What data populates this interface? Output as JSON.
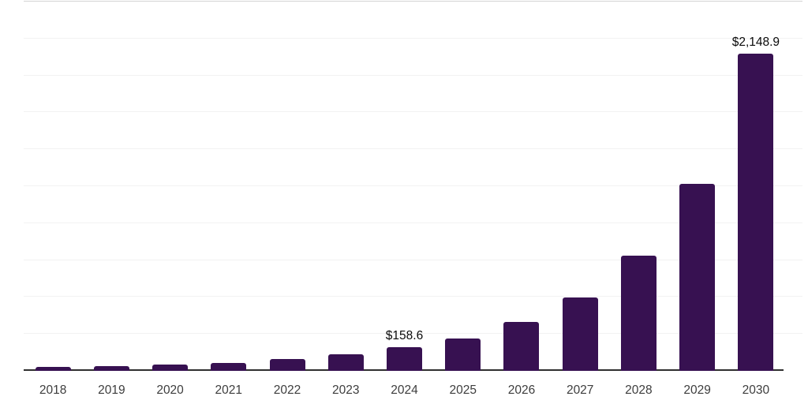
{
  "chart_data": {
    "type": "bar",
    "title": "",
    "xlabel": "",
    "ylabel": "",
    "categories": [
      "2018",
      "2019",
      "2020",
      "2021",
      "2022",
      "2023",
      "2024",
      "2025",
      "2026",
      "2027",
      "2028",
      "2029",
      "2030"
    ],
    "values": [
      28,
      34,
      41,
      54,
      78,
      110,
      158.6,
      217,
      330,
      497,
      778,
      1264,
      2148.9
    ],
    "data_labels": [
      "",
      "",
      "",
      "",
      "",
      "",
      "$158.6",
      "",
      "",
      "",
      "",
      "",
      "$2,148.9"
    ],
    "ylim": [
      0,
      2500
    ],
    "grid_step": 250,
    "grid": true,
    "legend_position": "none",
    "colors": {
      "bar": "#371151",
      "gridline": "#f2f2f2",
      "top_gridline": "#d4d4d4",
      "axis_line": "#2f2f2f",
      "tick_label": "#3d3d3d",
      "data_label": "#0a0a0a",
      "background": "#ffffff"
    }
  }
}
